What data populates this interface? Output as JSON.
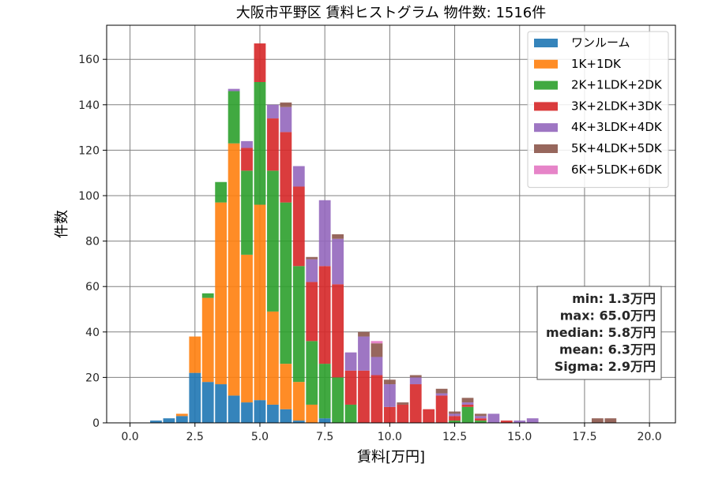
{
  "chart_data": {
    "type": "bar",
    "stacked": true,
    "title": "大阪市平野区 賃料ヒストグラム  物件数: 1516件",
    "xlabel": "賃料[万円]",
    "ylabel": "件数",
    "xlim": [
      -0.9,
      21.0
    ],
    "ylim": [
      0,
      175
    ],
    "grid": true,
    "legend_position": "top-right",
    "xticks": [
      0.0,
      2.5,
      5.0,
      7.5,
      10.0,
      12.5,
      15.0,
      17.5,
      20.0
    ],
    "xtick_labels": [
      "0.0",
      "2.5",
      "5.0",
      "7.5",
      "10.0",
      "12.5",
      "15.0",
      "17.5",
      "20.0"
    ],
    "yticks": [
      0,
      20,
      40,
      60,
      80,
      100,
      120,
      140,
      160
    ],
    "ytick_labels": [
      "0",
      "20",
      "40",
      "60",
      "80",
      "100",
      "120",
      "140",
      "160"
    ],
    "bin_width": 0.5,
    "bin_centers": [
      1.0,
      1.5,
      2.0,
      2.5,
      3.0,
      3.5,
      4.0,
      4.5,
      5.0,
      5.5,
      6.0,
      6.5,
      7.0,
      7.5,
      8.0,
      8.5,
      9.0,
      9.5,
      10.0,
      10.5,
      11.0,
      11.5,
      12.0,
      12.5,
      13.0,
      13.5,
      14.0,
      14.5,
      15.0,
      15.5,
      16.0,
      16.5,
      17.0,
      17.5,
      18.0,
      18.5
    ],
    "series": [
      {
        "name": "ワンルーム",
        "color": "#1f77b4",
        "values": [
          1,
          2,
          3,
          22,
          18,
          17,
          12,
          9,
          10,
          8,
          6,
          1,
          0,
          2,
          0,
          0,
          0,
          0,
          0,
          0,
          0,
          0,
          0,
          0,
          0,
          0,
          0,
          0,
          0,
          0,
          0,
          0,
          0,
          0,
          0,
          0
        ]
      },
      {
        "name": "1K+1DK",
        "color": "#ff7f0e",
        "values": [
          0,
          0,
          1,
          16,
          37,
          80,
          111,
          65,
          86,
          41,
          20,
          17,
          8,
          0,
          0,
          0,
          0,
          0,
          0,
          0,
          0,
          0,
          0,
          0,
          0,
          0,
          0,
          0,
          0,
          0,
          0,
          0,
          0,
          0,
          0,
          0
        ]
      },
      {
        "name": "2K+1LDK+2DK",
        "color": "#2ca02c",
        "values": [
          0,
          0,
          0,
          0,
          2,
          9,
          23,
          37,
          54,
          62,
          71,
          51,
          28,
          24,
          20,
          8,
          0,
          0,
          0,
          0,
          0,
          0,
          0,
          1,
          7,
          1,
          0,
          0,
          0,
          0,
          0,
          0,
          0,
          0,
          0,
          0
        ]
      },
      {
        "name": "3K+2LDK+3DK",
        "color": "#d62728",
        "values": [
          0,
          0,
          0,
          0,
          0,
          0,
          0,
          10,
          17,
          23,
          31,
          35,
          26,
          43,
          41,
          15,
          23,
          21,
          7,
          8,
          17,
          6,
          12,
          2,
          1,
          1,
          0,
          1,
          0,
          0,
          0,
          0,
          0,
          0,
          0,
          0
        ]
      },
      {
        "name": "4K+3LDK+4DK",
        "color": "#9467bd",
        "values": [
          0,
          0,
          0,
          0,
          0,
          0,
          1,
          3,
          0,
          6,
          11,
          9,
          10,
          29,
          20,
          8,
          15,
          8,
          10,
          0,
          3,
          0,
          1,
          1,
          1,
          1,
          4,
          0,
          1,
          2,
          0,
          0,
          0,
          0,
          0,
          0
        ]
      },
      {
        "name": "5K+4LDK+5DK",
        "color": "#8c564b",
        "values": [
          0,
          0,
          0,
          0,
          0,
          0,
          0,
          0,
          0,
          0,
          2,
          0,
          1,
          0,
          2,
          0,
          2,
          6,
          2,
          1,
          1,
          0,
          2,
          1,
          2,
          1,
          0,
          0,
          0,
          0,
          0,
          0,
          0,
          0,
          2,
          2
        ]
      },
      {
        "name": "6K+5LDK+6DK",
        "color": "#e377c2",
        "values": [
          0,
          0,
          0,
          0,
          0,
          0,
          0,
          0,
          0,
          0,
          0,
          0,
          0,
          0,
          0,
          0,
          0,
          1,
          0,
          0,
          0,
          0,
          0,
          0,
          0,
          0,
          0,
          0,
          0,
          0,
          0,
          0,
          0,
          0,
          0,
          0
        ]
      }
    ],
    "stats": [
      "min: 1.3万円",
      "max: 65.0万円",
      "median: 5.8万円",
      "mean: 6.3万円",
      "Sigma: 2.9万円"
    ]
  }
}
